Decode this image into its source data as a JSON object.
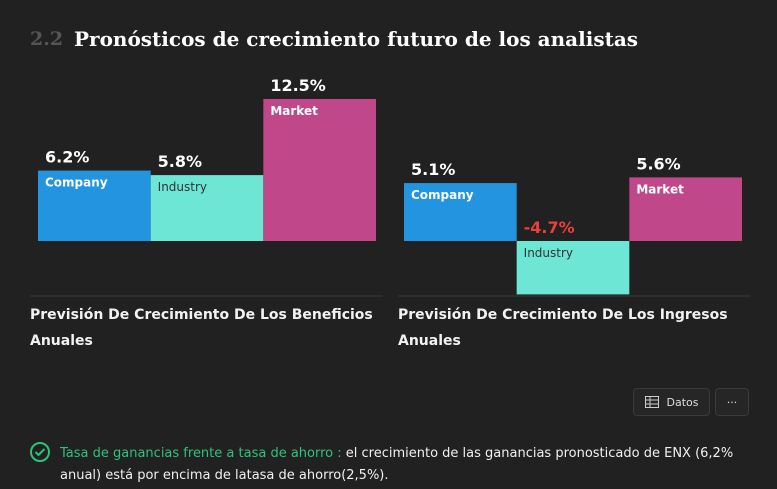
{
  "section": {
    "number": "2.2",
    "title": "Pronósticos de crecimiento futuro de los analistas"
  },
  "chart_data": [
    {
      "type": "bar",
      "title": "Previsión De Crecimiento De Los Beneficios Anuales",
      "categories": [
        "Company",
        "Industry",
        "Market"
      ],
      "values": [
        6.2,
        5.8,
        12.5
      ],
      "value_labels": [
        "6.2%",
        "5.8%",
        "12.5%"
      ],
      "colors": [
        "#2394df",
        "#6de6d5",
        "#c0488a"
      ]
    },
    {
      "type": "bar",
      "title": "Previsión De Crecimiento De Los Ingresos Anuales",
      "categories": [
        "Company",
        "Industry",
        "Market"
      ],
      "values": [
        5.1,
        -4.7,
        5.6
      ],
      "value_labels": [
        "5.1%",
        "-4.7%",
        "5.6%"
      ],
      "colors": [
        "#2394df",
        "#6de6d5",
        "#c0488a"
      ]
    }
  ],
  "buttons": {
    "data": "Datos",
    "more": "···"
  },
  "footer": {
    "label": "Tasa de ganancias frente a tasa de ahorro :",
    "text": "el crecimiento de las ganancias pronosticado de ENX (6,2% anual) está por encima de latasa de ahorro(2,5%)."
  }
}
